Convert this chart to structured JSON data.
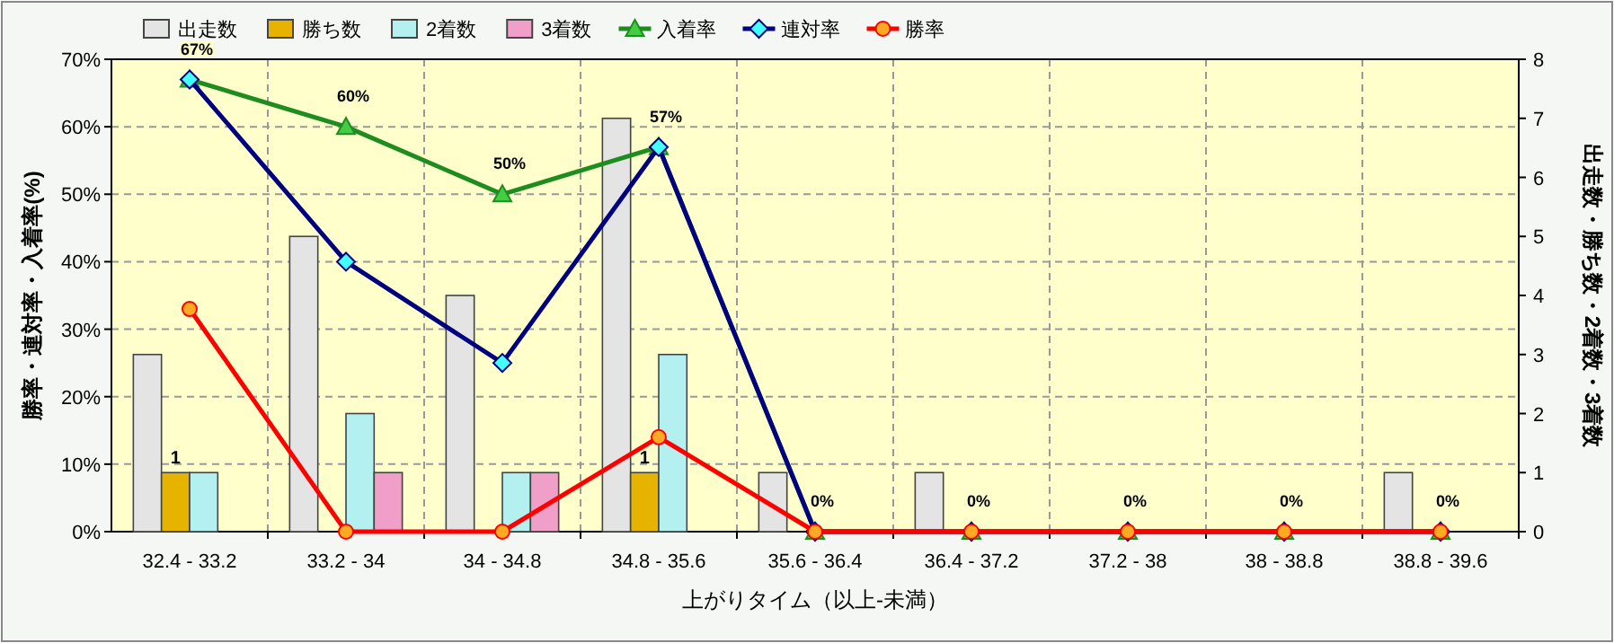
{
  "chart_data": {
    "type": "bar",
    "xlabel": "上がりタイム（以上-未満）",
    "ylabel": "勝率・連対率・入着率(%)",
    "y2label": "出走数・勝ち数・2着数・3着数",
    "categories": [
      "32.4 - 33.2",
      "33.2 - 34",
      "34 - 34.8",
      "34.8 - 35.6",
      "35.6 - 36.4",
      "36.4 - 37.2",
      "37.2 - 38",
      "38 - 38.8",
      "38.8 - 39.6"
    ],
    "ylim": [
      0,
      70
    ],
    "yticks": [
      {
        "value": 0,
        "label": "0%"
      },
      {
        "value": 10,
        "label": "10%"
      },
      {
        "value": 20,
        "label": "20%"
      },
      {
        "value": 30,
        "label": "30%"
      },
      {
        "value": 40,
        "label": "40%"
      },
      {
        "value": 50,
        "label": "50%"
      },
      {
        "value": 60,
        "label": "60%"
      },
      {
        "value": 70,
        "label": "70%"
      }
    ],
    "y2lim": [
      0,
      8
    ],
    "y2ticks": [
      0,
      1,
      2,
      3,
      4,
      5,
      6,
      7,
      8
    ],
    "grid": true,
    "legend": "top left",
    "series": [
      {
        "name": "出走数",
        "axis": "y2",
        "color": "#e4e4e4",
        "values": [
          3,
          5,
          4,
          7,
          1,
          1,
          0,
          0,
          1
        ]
      },
      {
        "name": "勝ち数",
        "axis": "y2",
        "color": "#e6b400",
        "values": [
          1,
          0,
          0,
          1,
          0,
          0,
          0,
          0,
          0
        ],
        "value_labels": [
          "1",
          null,
          null,
          "1",
          null,
          null,
          null,
          null,
          null
        ]
      },
      {
        "name": "2着数",
        "axis": "y2",
        "color": "#b4f0f0",
        "values": [
          1,
          2,
          1,
          3,
          0,
          0,
          0,
          0,
          0
        ]
      },
      {
        "name": "3着数",
        "axis": "y2",
        "color": "#f0a0c8",
        "values": [
          0,
          1,
          1,
          0,
          0,
          0,
          0,
          0,
          0
        ]
      },
      {
        "name": "入着率",
        "type": "line",
        "axis": "y",
        "color": "#1e8c1e",
        "marker": "triangle",
        "values": [
          67,
          60,
          50,
          57,
          0,
          0,
          0,
          0,
          0
        ],
        "value_labels": [
          "67%",
          "60%",
          "50%",
          "57%",
          "0%",
          "0%",
          "0%",
          "0%",
          "0%"
        ]
      },
      {
        "name": "連対率",
        "type": "line",
        "axis": "y",
        "color": "#000080",
        "marker": "diamond",
        "values": [
          67,
          40,
          25,
          57,
          0,
          0,
          0,
          0,
          0
        ]
      },
      {
        "name": "勝率",
        "type": "line",
        "axis": "y",
        "color": "#ff0000",
        "marker": "circle",
        "values": [
          33,
          0,
          0,
          14,
          0,
          0,
          0,
          0,
          0
        ]
      }
    ]
  }
}
